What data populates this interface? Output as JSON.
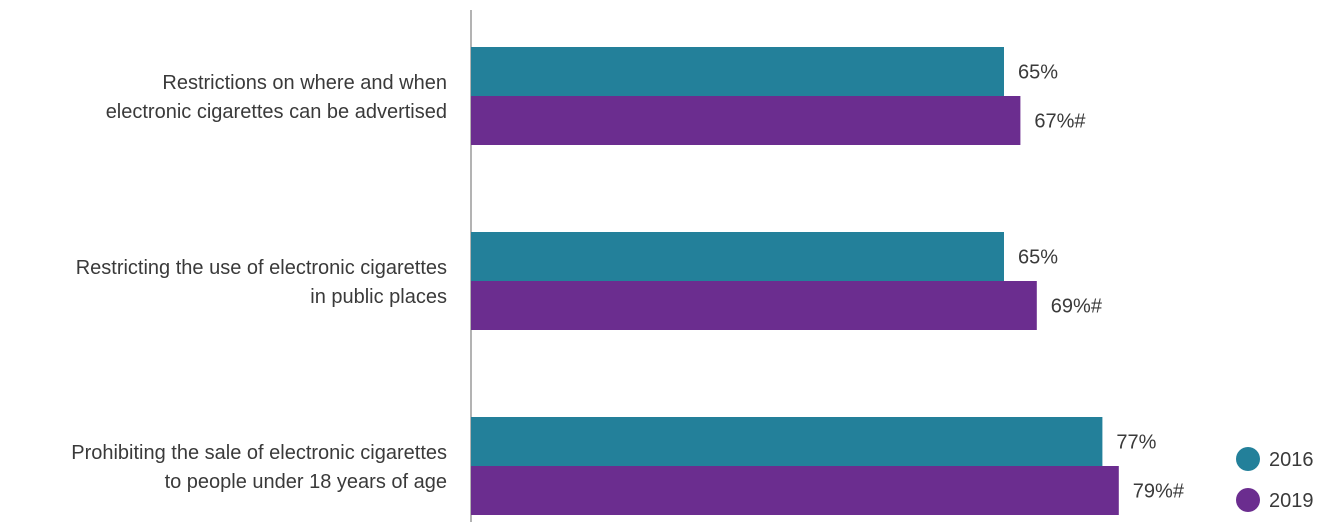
{
  "chart_data": {
    "type": "bar",
    "orientation": "horizontal",
    "title": "",
    "xlabel": "",
    "ylabel": "",
    "xlim": [
      0,
      100
    ],
    "grid": false,
    "legend_position": "bottom-right",
    "categories": [
      [
        "Restrictions on where and when",
        "electronic cigarettes can be advertised"
      ],
      [
        "Restricting the use of electronic cigarettes",
        "in public places"
      ],
      [
        "Prohibiting the sale of electronic cigarettes",
        "to people under 18 years of age"
      ]
    ],
    "series": [
      {
        "name": "2016",
        "color": "#23809a",
        "values": [
          65,
          65,
          77
        ],
        "labels": [
          "65%",
          "65%",
          "77%"
        ]
      },
      {
        "name": "2019",
        "color": "#6b2d8f",
        "values": [
          67,
          69,
          79
        ],
        "labels": [
          "67%#",
          "69%#",
          "79%#"
        ]
      }
    ]
  }
}
